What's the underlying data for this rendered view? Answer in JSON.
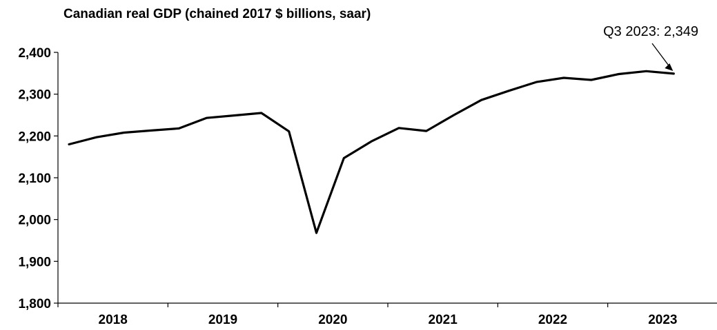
{
  "chart_data": {
    "type": "line",
    "title": "Canadian real GDP (chained 2017 $ billions, saar)",
    "xlabel": "",
    "ylabel": "",
    "ylim": [
      1800,
      2400
    ],
    "yticks": [
      1800,
      1900,
      2000,
      2100,
      2200,
      2300,
      2400
    ],
    "ytick_labels": [
      "1,800",
      "1,900",
      "2,000",
      "2,100",
      "2,200",
      "2,300",
      "2,400"
    ],
    "year_labels": [
      "2018",
      "2019",
      "2020",
      "2021",
      "2022",
      "2023"
    ],
    "x": [
      "2018 Q1",
      "2018 Q2",
      "2018 Q3",
      "2018 Q4",
      "2019 Q1",
      "2019 Q2",
      "2019 Q3",
      "2019 Q4",
      "2020 Q1",
      "2020 Q2",
      "2020 Q3",
      "2020 Q4",
      "2021 Q1",
      "2021 Q2",
      "2021 Q3",
      "2021 Q4",
      "2022 Q1",
      "2022 Q2",
      "2022 Q3",
      "2022 Q4",
      "2023 Q1",
      "2023 Q2",
      "2023 Q3"
    ],
    "series": [
      {
        "values": [
          2180,
          2197,
          2208,
          2213,
          2218,
          2243,
          2249,
          2255,
          2211,
          1968,
          2147,
          2187,
          2219,
          2212,
          2250,
          2286,
          2308,
          2329,
          2339,
          2334,
          2348,
          2355,
          2349
        ]
      }
    ],
    "grid": false,
    "legend": "none",
    "annotation": {
      "text": "Q3 2023: 2,349",
      "target": "2023 Q3"
    },
    "line_color": "#000000"
  }
}
